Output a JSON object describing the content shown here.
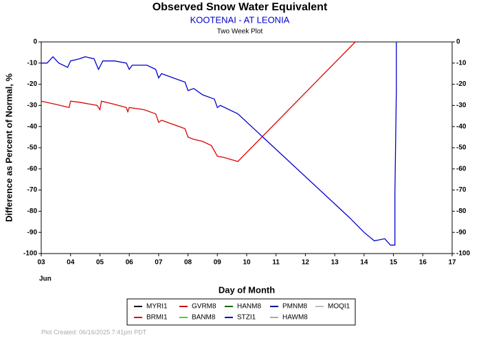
{
  "chart_data": {
    "type": "line",
    "title": "Observed Snow Water Equivalent",
    "subtitle": "KOOTENAI - AT LEONIA",
    "plot_label": "Two Week Plot",
    "y_label": "Difference as Percent of Normal, %",
    "x_label": "Day of Month",
    "month_label": "Jun",
    "footer": "Plot Created: 06/16/2025 7:41pm PDT",
    "xlim": [
      3,
      17
    ],
    "xticks": [
      {
        "value": 3,
        "label": "03"
      },
      {
        "value": 4,
        "label": "04"
      },
      {
        "value": 5,
        "label": "05"
      },
      {
        "value": 6,
        "label": "06"
      },
      {
        "value": 7,
        "label": "07"
      },
      {
        "value": 8,
        "label": "08"
      },
      {
        "value": 9,
        "label": "09"
      },
      10,
      11,
      12,
      13,
      14,
      15,
      16,
      17
    ],
    "ylim": [
      -100,
      0
    ],
    "yticks": [
      -100,
      -90,
      -80,
      -70,
      -60,
      -50,
      -40,
      -30,
      -20,
      -10,
      0
    ],
    "series": [
      {
        "name": "MYRI1",
        "color": "#000000",
        "x": [],
        "values": []
      },
      {
        "name": "GVRM8",
        "color": "#cc0000",
        "x": [],
        "values": []
      },
      {
        "name": "HANM8",
        "color": "#006600",
        "x": [],
        "values": []
      },
      {
        "name": "PMNM8",
        "color": "#000099",
        "x": [],
        "values": []
      },
      {
        "name": "MOQI1",
        "color": "#bbbbbb",
        "x": [],
        "values": []
      },
      {
        "name": "BRMI1",
        "color": "#dd0000",
        "x": [
          3.0,
          3.5,
          3.95,
          4.0,
          4.3,
          4.9,
          5.0,
          5.05,
          5.5,
          5.9,
          5.95,
          6.0,
          6.5,
          6.9,
          7.0,
          7.1,
          7.5,
          7.9,
          8.0,
          8.2,
          8.5,
          8.8,
          9.0,
          9.2,
          9.7,
          13.7
        ],
        "values": [
          -28,
          -29.5,
          -31,
          -28,
          -28.5,
          -30,
          -32,
          -28,
          -29.5,
          -31,
          -33,
          -31,
          -32,
          -34,
          -38,
          -37,
          -39,
          -41,
          -45,
          -46,
          -47,
          -49,
          -54,
          -54.5,
          -56.5,
          0
        ]
      },
      {
        "name": "BANM8",
        "color": "#33dd33",
        "x": [],
        "values": []
      },
      {
        "name": "STZI1",
        "color": "#0000cc",
        "x": [
          3.0,
          3.2,
          3.4,
          3.6,
          3.9,
          4.0,
          4.3,
          4.5,
          4.8,
          4.95,
          5.1,
          5.5,
          5.9,
          6.0,
          6.1,
          6.6,
          6.9,
          7.0,
          7.1,
          7.5,
          7.9,
          8.0,
          8.2,
          8.5,
          8.9,
          9.0,
          9.1,
          9.7,
          13.5,
          14.0,
          14.35,
          14.7,
          14.9,
          15.05,
          15.05,
          15.1,
          15.1
        ],
        "values": [
          -10,
          -10,
          -7,
          -10,
          -12,
          -9,
          -8,
          -7,
          -8,
          -13,
          -9,
          -9,
          -10,
          -13,
          -11,
          -11,
          -13,
          -17,
          -15,
          -17,
          -19,
          -23,
          -22,
          -25,
          -27,
          -31,
          -30,
          -34,
          -83,
          -90,
          -94,
          -93,
          -96,
          -96,
          -72,
          -23,
          0
        ]
      },
      {
        "name": "HAWM8",
        "color": "#aaaaaa",
        "x": [],
        "values": []
      }
    ]
  }
}
